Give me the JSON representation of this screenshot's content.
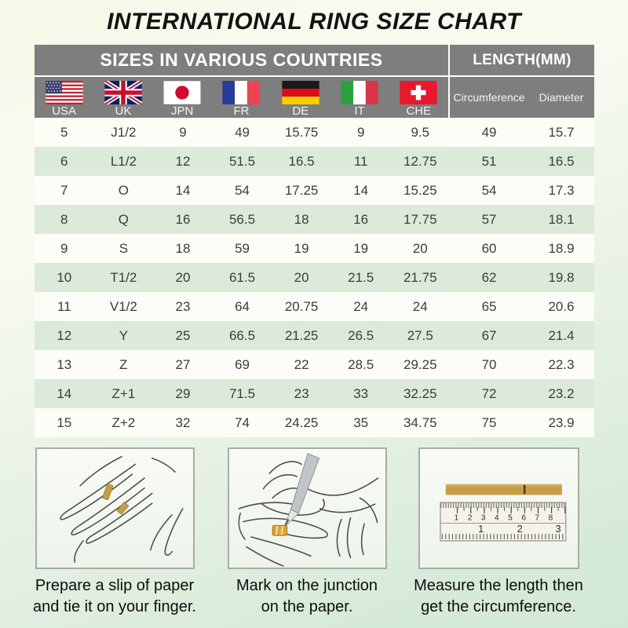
{
  "title": "INTERNATIONAL RING SIZE CHART",
  "table": {
    "countries_header": "SIZES IN VARIOUS COUNTRIES",
    "length_header": "LENGTH(MM)",
    "columns": [
      "USA",
      "UK",
      "JPN",
      "FR",
      "DE",
      "IT",
      "CHE"
    ],
    "length_columns": [
      "Circumference",
      "Diameter"
    ],
    "rows": [
      [
        "5",
        "J1/2",
        "9",
        "49",
        "15.75",
        "9",
        "9.5",
        "49",
        "15.7"
      ],
      [
        "6",
        "L1/2",
        "12",
        "51.5",
        "16.5",
        "11",
        "12.75",
        "51",
        "16.5"
      ],
      [
        "7",
        "O",
        "14",
        "54",
        "17.25",
        "14",
        "15.25",
        "54",
        "17.3"
      ],
      [
        "8",
        "Q",
        "16",
        "56.5",
        "18",
        "16",
        "17.75",
        "57",
        "18.1"
      ],
      [
        "9",
        "S",
        "18",
        "59",
        "19",
        "19",
        "20",
        "60",
        "18.9"
      ],
      [
        "10",
        "T1/2",
        "20",
        "61.5",
        "20",
        "21.5",
        "21.75",
        "62",
        "19.8"
      ],
      [
        "11",
        "V1/2",
        "23",
        "64",
        "20.75",
        "24",
        "24",
        "65",
        "20.6"
      ],
      [
        "12",
        "Y",
        "25",
        "66.5",
        "21.25",
        "26.5",
        "27.5",
        "67",
        "21.4"
      ],
      [
        "13",
        "Z",
        "27",
        "69",
        "22",
        "28.5",
        "29.25",
        "70",
        "22.3"
      ],
      [
        "14",
        "Z+1",
        "29",
        "71.5",
        "23",
        "33",
        "32.25",
        "72",
        "23.2"
      ],
      [
        "15",
        "Z+2",
        "32",
        "74",
        "24.25",
        "35",
        "34.75",
        "75",
        "23.9"
      ]
    ]
  },
  "instructions": [
    {
      "line1": "Prepare a slip of paper",
      "line2": "and tie it on your finger."
    },
    {
      "line1": "Mark on the junction",
      "line2": "on the paper."
    },
    {
      "line1": "Measure the length then",
      "line2": "get the circumference."
    }
  ],
  "ruler": {
    "cm_scale": [
      "1",
      "2",
      "3",
      "4",
      "5",
      "6",
      "7",
      "8"
    ],
    "inch_scale": [
      "1",
      "2",
      "3"
    ]
  },
  "colors": {
    "header_gray": "#7e7e7e",
    "row_green": "#dcead9",
    "row_light": "#fbfdf6",
    "paper_tan": "#c79e48"
  }
}
